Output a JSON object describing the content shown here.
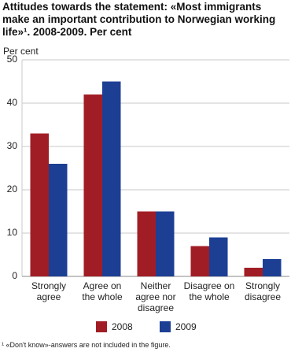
{
  "chart_data": {
    "type": "bar",
    "title": "Attitudes towards the statement: «Most immigrants make an important contribution to Norwegian working life»¹. 2008-2009. Per cent",
    "y_label": "Per cent",
    "categories": [
      "Strongly agree",
      "Agree on the whole",
      "Neither agree nor disagree",
      "Disagree on the whole",
      "Strongly disagree"
    ],
    "series": [
      {
        "name": "2008",
        "color": "#a11d25",
        "values": [
          33,
          42,
          15,
          7,
          2
        ]
      },
      {
        "name": "2009",
        "color": "#1c3f94",
        "values": [
          26,
          45,
          15,
          9,
          4
        ]
      }
    ],
    "ylim": [
      0,
      50
    ],
    "yticks": [
      0,
      10,
      20,
      30,
      40,
      50
    ],
    "grid": true,
    "legend": "bottom",
    "footnote": "¹ «Don't know»-answers are not included in the figure."
  }
}
